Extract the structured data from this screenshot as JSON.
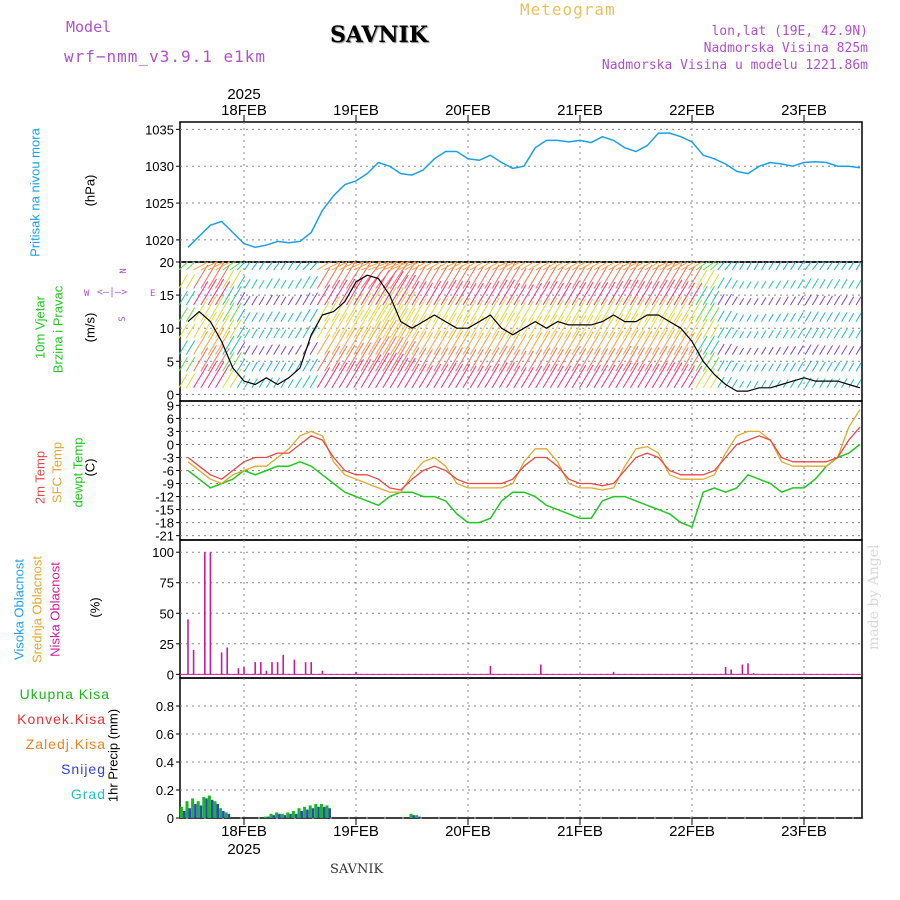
{
  "header": {
    "model_label": "Model",
    "model_name": "wrf−nmm_v3.9.1  e1km",
    "station": "SAVNIK",
    "title": "Meteogram",
    "lonlat": "lon,lat (19E, 42.9N)",
    "altitude": "Nadmorska Visina 825m",
    "model_altitude": "Nadmorska Visina u modelu 1221.86m"
  },
  "footer": {
    "station": "SAVNIK",
    "credit": "made by Angel"
  },
  "colors": {
    "pressure": "#1ba0e8",
    "temp2m": "#e84848",
    "sfctemp": "#e0a830",
    "dewpt": "#20c820",
    "cloud_low": "#d0189a",
    "total_precip": "#18b818",
    "conv": "#ee3030",
    "frozen": "#f08020",
    "snow": "#3040e0",
    "grad": "#20c0c0",
    "wind_label": "#20c820",
    "title_purple": "#b050d0"
  },
  "x_axis": {
    "top_year": "2025",
    "bottom_year": "2025",
    "days": [
      "18FEB",
      "19FEB",
      "20FEB",
      "21FEB",
      "22FEB",
      "23FEB"
    ]
  },
  "compass": {
    "n": "N",
    "s": "S",
    "e": "E",
    "w": "W"
  },
  "chart_data": [
    {
      "type": "line",
      "panel": "pressure",
      "ylabel_left": "Pritisak na nivou mora",
      "ylabel_unit": "(hPa)",
      "ylim": [
        1017,
        1036
      ],
      "yticks": [
        "1020",
        "1025",
        "1030",
        "1035"
      ],
      "x_range_days": [
        -0.6,
        5.5
      ],
      "series": [
        {
          "name": "Pritisak na nivou mora",
          "x": [
            -0.6,
            -0.5,
            -0.4,
            -0.3,
            -0.2,
            -0.1,
            0.0,
            0.1,
            0.2,
            0.3,
            0.4,
            0.5,
            0.6,
            0.7,
            0.8,
            0.9,
            1.0,
            1.1,
            1.2,
            1.3,
            1.4,
            1.5,
            1.6,
            1.7,
            1.8,
            1.9,
            2.0,
            2.1,
            2.2,
            2.3,
            2.4,
            2.5,
            2.6,
            2.7,
            2.8,
            2.9,
            3.0,
            3.1,
            3.2,
            3.3,
            3.4,
            3.5,
            3.6,
            3.7,
            3.8,
            3.9,
            4.0,
            4.1,
            4.2,
            4.3,
            4.4,
            4.5,
            4.6,
            4.7,
            4.8,
            4.9,
            5.0,
            5.1,
            5.2,
            5.3,
            5.4,
            5.5
          ],
          "values": [
            1017.5,
            1019,
            1020.5,
            1022,
            1022.5,
            1021,
            1019.5,
            1019,
            1019.3,
            1019.8,
            1019.6,
            1019.8,
            1021,
            1024,
            1026,
            1027.5,
            1028,
            1029,
            1030.5,
            1030,
            1029,
            1028.8,
            1029.5,
            1031,
            1032,
            1032,
            1031,
            1030.8,
            1031.5,
            1030.5,
            1029.7,
            1030,
            1032.5,
            1033.5,
            1033.5,
            1033.3,
            1033.5,
            1033.2,
            1034,
            1033.5,
            1032.5,
            1032,
            1032.8,
            1034.5,
            1034.5,
            1034,
            1033.3,
            1031.5,
            1031,
            1030.3,
            1029.3,
            1029,
            1030,
            1030.5,
            1030.3,
            1030,
            1030.5,
            1030.6,
            1030.5,
            1030,
            1030,
            1029.8
          ]
        }
      ]
    },
    {
      "type": "line",
      "panel": "wind",
      "ylabel_left": "10m Vjetar",
      "ylabel_left2": "Brzina i Pravac",
      "ylabel_unit": "(m/s)",
      "ylim": [
        -1,
        20
      ],
      "yticks": [
        "0",
        "5",
        "10",
        "15",
        "20"
      ],
      "x_range_days": [
        -0.6,
        5.5
      ],
      "series": [
        {
          "name": "Brzina",
          "x": [
            -0.6,
            -0.5,
            -0.4,
            -0.3,
            -0.2,
            -0.1,
            0.0,
            0.1,
            0.2,
            0.3,
            0.4,
            0.5,
            0.6,
            0.7,
            0.8,
            0.9,
            1.0,
            1.1,
            1.2,
            1.3,
            1.4,
            1.5,
            1.6,
            1.7,
            1.8,
            1.9,
            2.0,
            2.1,
            2.2,
            2.3,
            2.4,
            2.5,
            2.6,
            2.7,
            2.8,
            2.9,
            3.0,
            3.1,
            3.2,
            3.3,
            3.4,
            3.5,
            3.6,
            3.7,
            3.8,
            3.9,
            4.0,
            4.1,
            4.2,
            4.3,
            4.4,
            4.5,
            4.6,
            4.7,
            4.8,
            4.9,
            5.0,
            5.1,
            5.2,
            5.3,
            5.4,
            5.5
          ],
          "values": [
            5,
            11,
            12.5,
            11,
            8,
            4,
            2,
            1.5,
            2.5,
            1.5,
            2.5,
            4,
            9,
            12,
            12.5,
            14,
            17,
            18,
            17.5,
            15,
            11,
            10,
            11,
            12,
            11,
            10,
            10,
            11,
            12,
            10,
            9,
            10,
            11,
            10,
            11,
            10.5,
            10.5,
            10.5,
            11,
            12,
            11,
            11,
            12,
            12,
            11,
            10,
            8,
            5,
            3,
            1.5,
            0.5,
            0.5,
            1,
            1,
            1.5,
            2,
            2.5,
            2,
            2,
            2,
            1.5,
            1
          ]
        }
      ]
    },
    {
      "type": "line",
      "panel": "temperature",
      "ylabel_left": "2m Temp",
      "ylabel_left2": "SFC Temp",
      "ylabel_left3": "dewpt Temp",
      "ylabel_unit": "(C)",
      "ylim": [
        -22,
        10
      ],
      "yticks": [
        "9",
        "6",
        "3",
        "0",
        "-3",
        "-6",
        "-9",
        "-12",
        "-15",
        "-18",
        "-21"
      ],
      "x_range_days": [
        -0.6,
        5.5
      ],
      "series": [
        {
          "name": "2m Temp",
          "x": [
            -0.6,
            -0.5,
            -0.4,
            -0.3,
            -0.2,
            -0.1,
            0.0,
            0.1,
            0.2,
            0.3,
            0.4,
            0.5,
            0.6,
            0.7,
            0.8,
            0.9,
            1.0,
            1.1,
            1.2,
            1.3,
            1.4,
            1.5,
            1.6,
            1.7,
            1.8,
            1.9,
            2.0,
            2.1,
            2.2,
            2.3,
            2.4,
            2.5,
            2.6,
            2.7,
            2.8,
            2.9,
            3.0,
            3.1,
            3.2,
            3.3,
            3.4,
            3.5,
            3.6,
            3.7,
            3.8,
            3.9,
            4.0,
            4.1,
            4.2,
            4.3,
            4.4,
            4.5,
            4.6,
            4.7,
            4.8,
            4.9,
            5.0,
            5.1,
            5.2,
            5.3,
            5.4,
            5.5
          ],
          "values": [
            0,
            -3,
            -5,
            -7,
            -8,
            -6,
            -4,
            -3,
            -3,
            -2,
            -2,
            0,
            2,
            1,
            -3,
            -6,
            -7,
            -7,
            -8,
            -10,
            -10.5,
            -8,
            -6,
            -5,
            -6,
            -8,
            -9,
            -9,
            -9,
            -9,
            -8,
            -5,
            -3,
            -3,
            -5,
            -8,
            -9,
            -9,
            -9.5,
            -9,
            -6,
            -3,
            -2,
            -3,
            -6,
            -7,
            -7,
            -7,
            -6,
            -3,
            0,
            1,
            2,
            1,
            -3,
            -4,
            -4,
            -4,
            -4,
            -3,
            1,
            4
          ]
        },
        {
          "name": "SFC Temp",
          "x": [
            -0.6,
            -0.5,
            -0.4,
            -0.3,
            -0.2,
            -0.1,
            0.0,
            0.1,
            0.2,
            0.3,
            0.4,
            0.5,
            0.6,
            0.7,
            0.8,
            0.9,
            1.0,
            1.1,
            1.2,
            1.3,
            1.4,
            1.5,
            1.6,
            1.7,
            1.8,
            1.9,
            2.0,
            2.1,
            2.2,
            2.3,
            2.4,
            2.5,
            2.6,
            2.7,
            2.8,
            2.9,
            3.0,
            3.1,
            3.2,
            3.3,
            3.4,
            3.5,
            3.6,
            3.7,
            3.8,
            3.9,
            4.0,
            4.1,
            4.2,
            4.3,
            4.4,
            4.5,
            4.6,
            4.7,
            4.8,
            4.9,
            5.0,
            5.1,
            5.2,
            5.3,
            5.4,
            5.5
          ],
          "values": [
            2,
            -4,
            -6,
            -8,
            -9,
            -7,
            -6,
            -5,
            -5,
            -3,
            -1,
            2,
            3,
            2,
            -4,
            -7,
            -8,
            -9,
            -10,
            -11,
            -11,
            -7,
            -4,
            -3,
            -5,
            -9,
            -10,
            -10,
            -10,
            -10,
            -9,
            -4,
            -1,
            -1,
            -4,
            -9,
            -10,
            -10,
            -10.5,
            -10,
            -5,
            -1,
            -0.5,
            -2,
            -7,
            -8,
            -8,
            -8,
            -7,
            -2,
            2,
            3,
            3,
            1,
            -4,
            -5,
            -5,
            -5,
            -5,
            -3,
            4,
            8
          ]
        },
        {
          "name": "dewpt Temp",
          "x": [
            -0.6,
            -0.5,
            -0.4,
            -0.3,
            -0.2,
            -0.1,
            0.0,
            0.1,
            0.2,
            0.3,
            0.4,
            0.5,
            0.6,
            0.7,
            0.8,
            0.9,
            1.0,
            1.1,
            1.2,
            1.3,
            1.4,
            1.5,
            1.6,
            1.7,
            1.8,
            1.9,
            2.0,
            2.1,
            2.2,
            2.3,
            2.4,
            2.5,
            2.6,
            2.7,
            2.8,
            2.9,
            3.0,
            3.1,
            3.2,
            3.3,
            3.4,
            3.5,
            3.6,
            3.7,
            3.8,
            3.9,
            4.0,
            4.1,
            4.2,
            4.3,
            4.4,
            4.5,
            4.6,
            4.7,
            4.8,
            4.9,
            5.0,
            5.1,
            5.2,
            5.3,
            5.4,
            5.5
          ],
          "values": [
            -3,
            -6,
            -8,
            -10,
            -9,
            -8,
            -6,
            -7,
            -6,
            -5,
            -5,
            -4,
            -5,
            -7,
            -9,
            -11,
            -12,
            -13,
            -14,
            -12,
            -11,
            -11,
            -12,
            -12,
            -13,
            -16,
            -18,
            -18,
            -17,
            -13,
            -11,
            -11,
            -12,
            -14,
            -15,
            -16,
            -17,
            -17,
            -13,
            -12,
            -12,
            -13,
            -14,
            -15,
            -16,
            -18,
            -19,
            -11,
            -10,
            -11,
            -10,
            -7,
            -8,
            -9,
            -11,
            -10,
            -10,
            -8,
            -5,
            -3,
            -2,
            0
          ]
        }
      ]
    },
    {
      "type": "bar",
      "panel": "cloud",
      "ylabel_left": "Visoka Oblacnost",
      "ylabel_left2": "Srednja Oblacnost",
      "ylabel_left3": "Niska Oblacnost",
      "ylabel_unit": "(%)",
      "ylim": [
        -3,
        110
      ],
      "yticks": [
        "0",
        "25",
        "50",
        "75",
        "100"
      ],
      "x_range_days": [
        -0.6,
        5.5
      ],
      "series": [
        {
          "name": "Niska Oblacnost",
          "x": [
            -0.5,
            -0.45,
            -0.35,
            -0.3,
            -0.2,
            -0.15,
            -0.05,
            0.0,
            0.1,
            0.15,
            0.25,
            0.3,
            0.35,
            0.45,
            0.55,
            0.6,
            0.7,
            0.2,
            1.0,
            2.2,
            2.65,
            3.3,
            4.3,
            4.35,
            4.45,
            4.5,
            4.55
          ],
          "values": [
            45,
            20,
            100,
            100,
            18,
            22,
            5,
            6,
            10,
            10,
            10,
            10,
            16,
            12,
            10,
            10,
            3,
            3,
            2,
            7,
            8,
            2,
            6,
            4,
            8,
            9,
            1
          ]
        }
      ]
    },
    {
      "type": "bar",
      "panel": "precipitation",
      "ylabel_left": "1hr Precip (mm)",
      "ylim": [
        0,
        1.0
      ],
      "yticks": [
        "0",
        "0.2",
        "0.4",
        "0.6",
        "0.8"
      ],
      "x_range_days": [
        -0.6,
        5.5
      ],
      "legend": [
        "Ukupna Kisa",
        "Konvek.Kisa",
        "Zaledj.Kisa",
        "Snijeg",
        "Grad"
      ],
      "series": [
        {
          "name": "Ukupna Kisa",
          "x": [
            -0.55,
            -0.5,
            -0.45,
            -0.4,
            -0.35,
            -0.3,
            -0.25,
            -0.2,
            -0.15,
            0.2,
            0.25,
            0.3,
            0.35,
            0.4,
            0.45,
            0.5,
            0.55,
            0.6,
            0.65,
            0.7,
            0.75,
            1.5,
            1.55
          ],
          "values": [
            0.08,
            0.12,
            0.14,
            0.12,
            0.15,
            0.16,
            0.12,
            0.07,
            0.04,
            0.01,
            0.03,
            0.04,
            0.03,
            0.04,
            0.05,
            0.07,
            0.08,
            0.09,
            0.1,
            0.1,
            0.09,
            0.03,
            0.02
          ]
        },
        {
          "name": "Snijeg",
          "x": [
            -0.55,
            -0.5,
            -0.45,
            -0.4,
            -0.35,
            -0.3,
            -0.25,
            -0.2,
            -0.15,
            0.2,
            0.25,
            0.3,
            0.35,
            0.4,
            0.45,
            0.5,
            0.55,
            0.6,
            0.65,
            0.7,
            0.75,
            1.5,
            1.55
          ],
          "values": [
            0.05,
            0.07,
            0.1,
            0.09,
            0.14,
            0.13,
            0.1,
            0.05,
            0.03,
            0.01,
            0.02,
            0.03,
            0.02,
            0.03,
            0.03,
            0.05,
            0.06,
            0.07,
            0.08,
            0.08,
            0.07,
            0.02,
            0.01
          ]
        }
      ]
    }
  ]
}
